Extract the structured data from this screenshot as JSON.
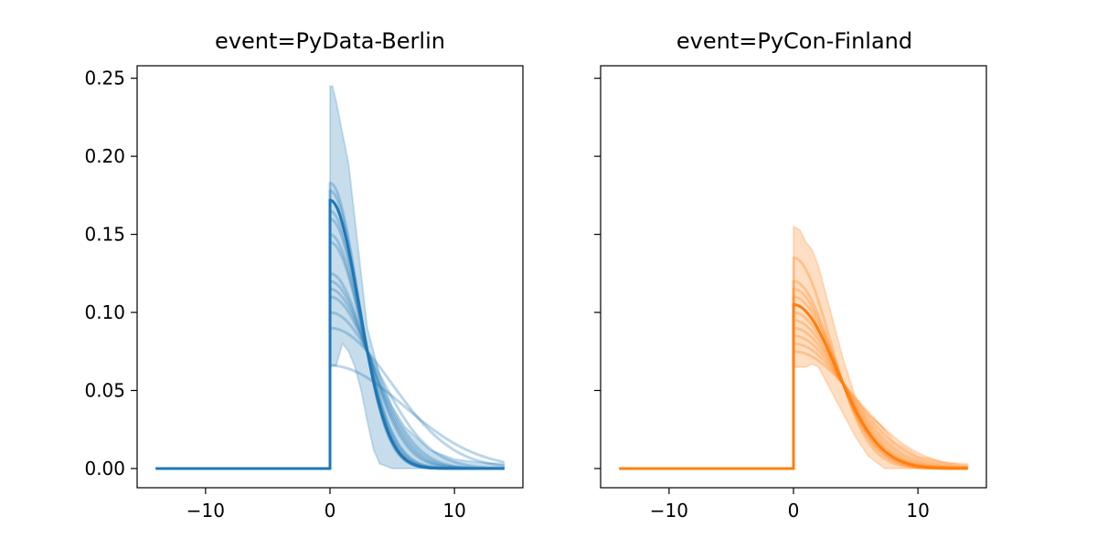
{
  "chart_data": [
    {
      "type": "line",
      "title": "event=PyData-Berlin",
      "xlim": [
        -15.5,
        15.5
      ],
      "ylim": [
        -0.0123,
        0.258
      ],
      "x_ticks": [
        -10,
        0,
        10
      ],
      "x_tick_labels": [
        "−10",
        "0",
        "10"
      ],
      "y_ticks": [
        0,
        0.05,
        0.1,
        0.15,
        0.2,
        0.25
      ],
      "y_tick_labels": [
        "0.00",
        "0.05",
        "0.10",
        "0.15",
        "0.20",
        "0.25"
      ],
      "grid": false,
      "color": "#1f77b4",
      "x_range": [
        -14,
        14
      ],
      "mean_curve": {
        "peak": 0.172,
        "scale": 3.3
      },
      "sample_curves": [
        {
          "peak": 0.183,
          "scale": 3.18
        },
        {
          "peak": 0.178,
          "scale": 3.23
        },
        {
          "peak": 0.172,
          "scale": 3.29
        },
        {
          "peak": 0.165,
          "scale": 3.38
        },
        {
          "peak": 0.16,
          "scale": 3.45
        },
        {
          "peak": 0.15,
          "scale": 3.6
        },
        {
          "peak": 0.145,
          "scale": 3.7
        },
        {
          "peak": 0.125,
          "scale": 4.2
        },
        {
          "peak": 0.12,
          "scale": 4.38
        },
        {
          "peak": 0.115,
          "scale": 4.59
        },
        {
          "peak": 0.11,
          "scale": 4.85
        },
        {
          "peak": 0.1,
          "scale": 5.6
        },
        {
          "peak": 0.09,
          "scale": 7.0
        },
        {
          "peak": 0.066,
          "scale": 8.4
        }
      ],
      "band": {
        "x": [
          0,
          0.2,
          0.5,
          1,
          1.5,
          2,
          2.5,
          3,
          3.5,
          4,
          5,
          6,
          8,
          10,
          12,
          14
        ],
        "upper": [
          0.245,
          0.245,
          0.235,
          0.215,
          0.195,
          0.16,
          0.125,
          0.09,
          0.075,
          0.06,
          0.04,
          0.027,
          0.012,
          0.006,
          0.004,
          0.003
        ],
        "lower": [
          0.066,
          0.066,
          0.066,
          0.08,
          0.075,
          0.065,
          0.05,
          0.03,
          0.012,
          0.003,
          0,
          0,
          0,
          0,
          0,
          0
        ]
      }
    },
    {
      "type": "line",
      "title": "event=PyCon-Finland",
      "xlim": [
        -15.5,
        15.5
      ],
      "ylim": [
        -0.0123,
        0.258
      ],
      "x_ticks": [
        -10,
        0,
        10
      ],
      "x_tick_labels": [
        "−10",
        "0",
        "10"
      ],
      "y_ticks": [
        0,
        0.05,
        0.1,
        0.15,
        0.2,
        0.25
      ],
      "grid": false,
      "color": "#ff7f0e",
      "x_range": [
        -14,
        14
      ],
      "mean_curve": {
        "peak": 0.105,
        "scale": 4.9
      },
      "sample_curves": [
        {
          "peak": 0.135,
          "scale": 4.18
        },
        {
          "peak": 0.12,
          "scale": 4.47
        },
        {
          "peak": 0.115,
          "scale": 4.6
        },
        {
          "peak": 0.11,
          "scale": 4.75
        },
        {
          "peak": 0.105,
          "scale": 4.9
        },
        {
          "peak": 0.1,
          "scale": 5.1
        },
        {
          "peak": 0.095,
          "scale": 5.3
        },
        {
          "peak": 0.09,
          "scale": 5.6
        },
        {
          "peak": 0.085,
          "scale": 5.94
        },
        {
          "peak": 0.08,
          "scale": 6.4
        },
        {
          "peak": 0.075,
          "scale": 7.0
        }
      ],
      "band": {
        "x": [
          0,
          0.5,
          1,
          1.5,
          2,
          3,
          4,
          5,
          6,
          7,
          7.3,
          8,
          10,
          12,
          14
        ],
        "upper": [
          0.155,
          0.153,
          0.145,
          0.14,
          0.13,
          0.1,
          0.07,
          0.045,
          0.035,
          0.028,
          0.025,
          0.018,
          0.008,
          0.004,
          0.003
        ],
        "lower": [
          0.065,
          0.065,
          0.065,
          0.067,
          0.065,
          0.05,
          0.035,
          0.02,
          0.008,
          0.002,
          0,
          0,
          0,
          0,
          0
        ]
      }
    }
  ]
}
